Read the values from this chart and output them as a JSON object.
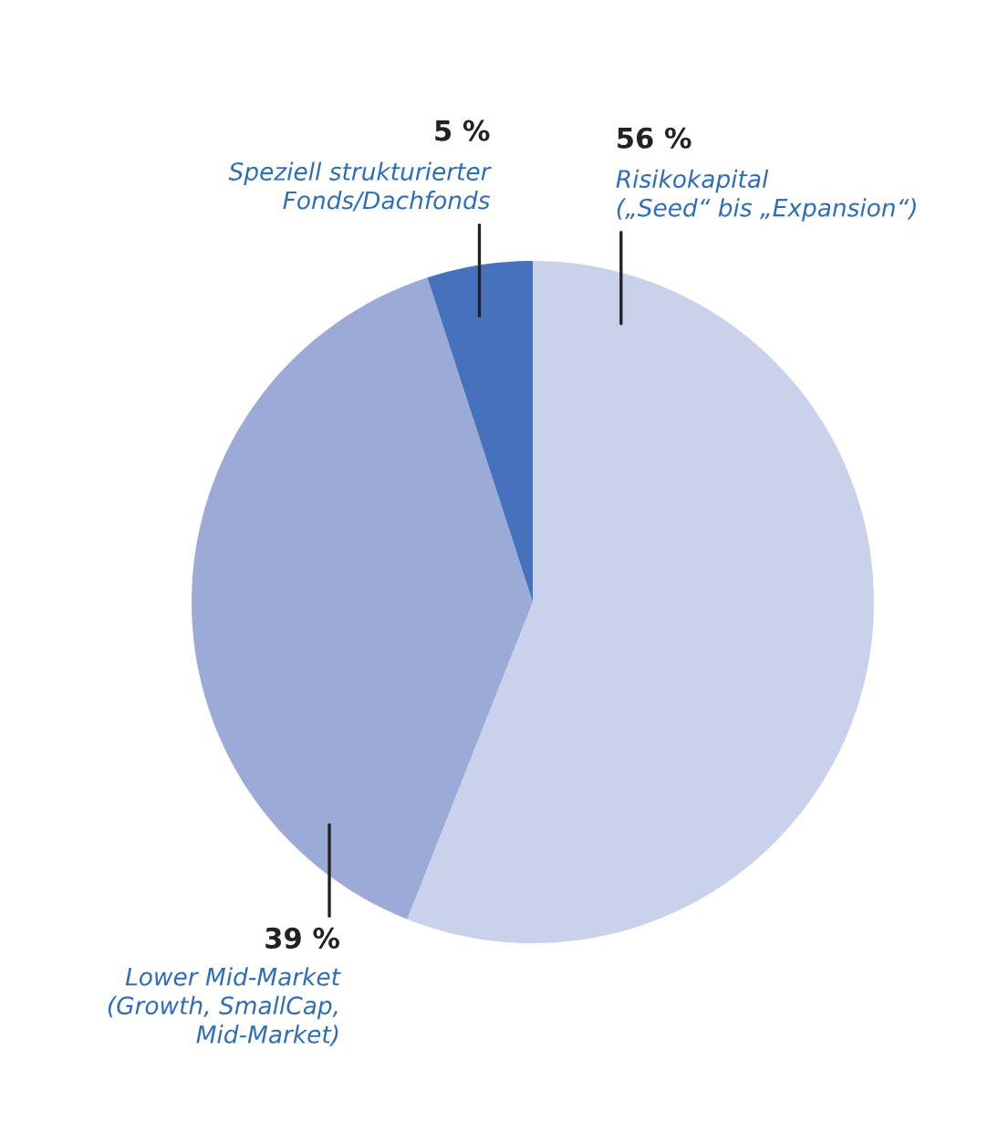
{
  "chart_data": {
    "type": "pie",
    "categories": [
      "Risikokapital\n(„Seed“ bis „Expansion“)",
      "Lower Mid-Market\n(Growth, SmallCap,\nMid-Market)",
      "Speziell strukturierter\nFonds/Dachfonds"
    ],
    "values": [
      56,
      39,
      5
    ],
    "value_labels": [
      "56 %",
      "39 %",
      "5 %"
    ],
    "colors": [
      "#c9d1eb",
      "#9caad7",
      "#4671bd"
    ],
    "legend": false
  }
}
